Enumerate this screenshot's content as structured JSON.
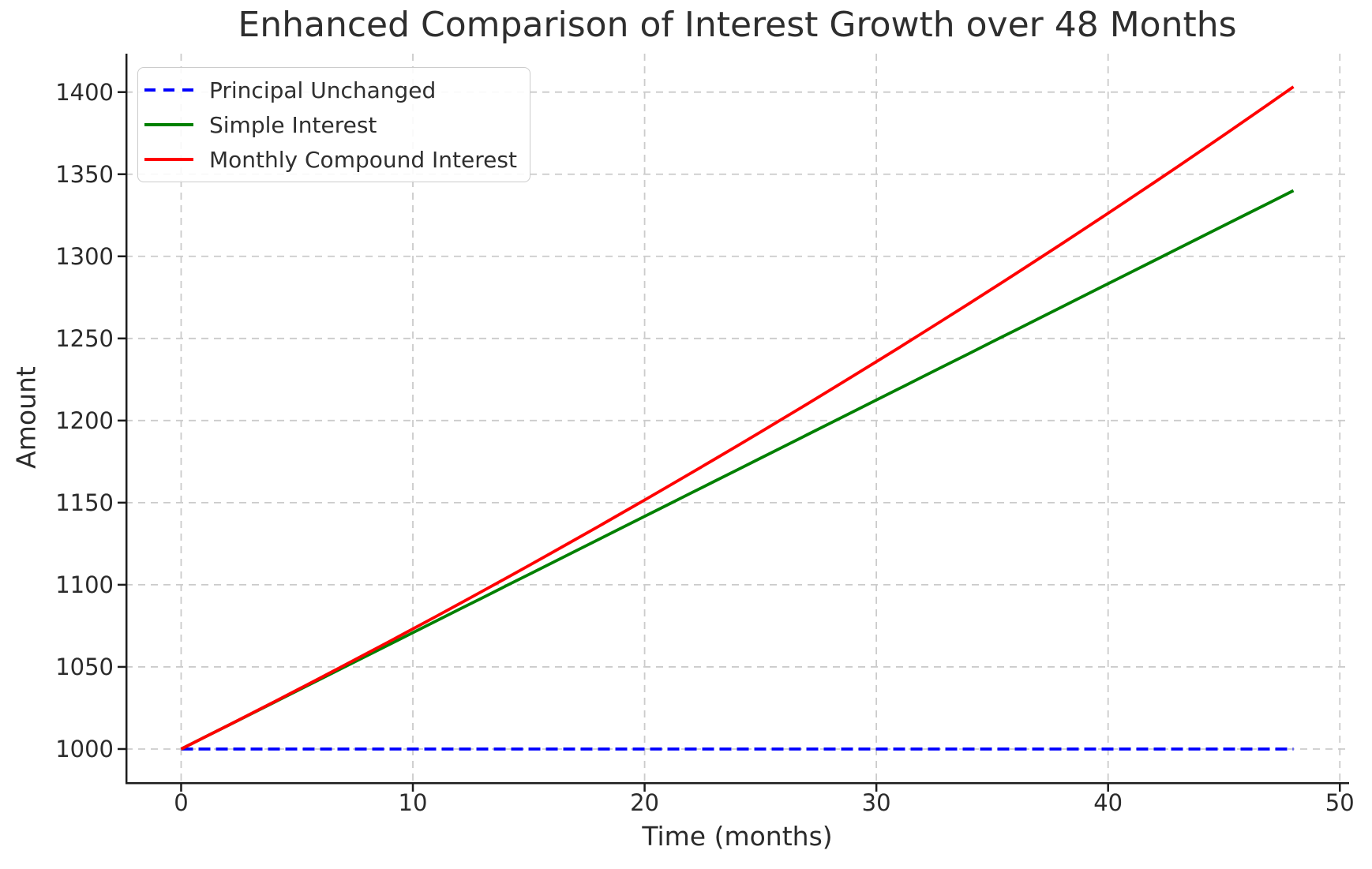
{
  "chart_data": {
    "type": "line",
    "title": "Enhanced Comparison of Interest Growth over 48 Months",
    "xlabel": "Time (months)",
    "ylabel": "Amount",
    "xlim": [
      -2.4,
      50.4
    ],
    "ylim": [
      979.8,
      1423.4
    ],
    "x_ticks": [
      0,
      10,
      20,
      30,
      40,
      50
    ],
    "y_ticks": [
      1000,
      1050,
      1100,
      1150,
      1200,
      1250,
      1300,
      1350,
      1400
    ],
    "grid": {
      "on": true,
      "style": "dashed",
      "color": "#cbcbcb"
    },
    "legend": {
      "position": "upper left"
    },
    "axis_color": "#1c1c1c",
    "x": [
      0,
      1,
      2,
      3,
      4,
      5,
      6,
      7,
      8,
      9,
      10,
      11,
      12,
      13,
      14,
      15,
      16,
      17,
      18,
      19,
      20,
      21,
      22,
      23,
      24,
      25,
      26,
      27,
      28,
      29,
      30,
      31,
      32,
      33,
      34,
      35,
      36,
      37,
      38,
      39,
      40,
      41,
      42,
      43,
      44,
      45,
      46,
      47,
      48
    ],
    "series": [
      {
        "name": "Principal Unchanged",
        "color": "#0000ff",
        "dash": "dashed",
        "values": [
          1000,
          1000,
          1000,
          1000,
          1000,
          1000,
          1000,
          1000,
          1000,
          1000,
          1000,
          1000,
          1000,
          1000,
          1000,
          1000,
          1000,
          1000,
          1000,
          1000,
          1000,
          1000,
          1000,
          1000,
          1000,
          1000,
          1000,
          1000,
          1000,
          1000,
          1000,
          1000,
          1000,
          1000,
          1000,
          1000,
          1000,
          1000,
          1000,
          1000,
          1000,
          1000,
          1000,
          1000,
          1000,
          1000,
          1000,
          1000,
          1000
        ]
      },
      {
        "name": "Simple Interest",
        "color": "#008000",
        "dash": "solid",
        "values": [
          1000,
          1007.08,
          1014.17,
          1021.25,
          1028.33,
          1035.42,
          1042.5,
          1049.58,
          1056.67,
          1063.75,
          1070.83,
          1077.92,
          1085,
          1092.08,
          1099.17,
          1106.25,
          1113.33,
          1120.42,
          1127.5,
          1134.58,
          1141.67,
          1148.75,
          1155.83,
          1162.92,
          1170,
          1177.08,
          1184.17,
          1191.25,
          1198.33,
          1205.42,
          1212.5,
          1219.58,
          1226.67,
          1233.75,
          1240.83,
          1247.92,
          1255,
          1262.08,
          1269.17,
          1276.25,
          1283.33,
          1290.42,
          1297.5,
          1304.58,
          1311.67,
          1318.75,
          1325.83,
          1332.92,
          1340
        ]
      },
      {
        "name": "Monthly Compound Interest",
        "color": "#ff0000",
        "dash": "solid",
        "values": [
          1000,
          1007.08,
          1014.22,
          1021.4,
          1028.64,
          1035.92,
          1043.26,
          1050.65,
          1058.09,
          1065.59,
          1073.13,
          1080.74,
          1088.39,
          1096.1,
          1103.86,
          1111.68,
          1119.56,
          1127.49,
          1135.47,
          1143.52,
          1151.62,
          1159.77,
          1167.99,
          1176.26,
          1184.59,
          1192.99,
          1201.44,
          1209.95,
          1218.52,
          1227.15,
          1235.84,
          1244.59,
          1253.41,
          1262.29,
          1271.23,
          1280.23,
          1289.3,
          1298.44,
          1307.63,
          1316.89,
          1326.22,
          1335.62,
          1345.08,
          1354.6,
          1364.2,
          1373.86,
          1383.59,
          1393.4,
          1403.27
        ]
      }
    ]
  }
}
